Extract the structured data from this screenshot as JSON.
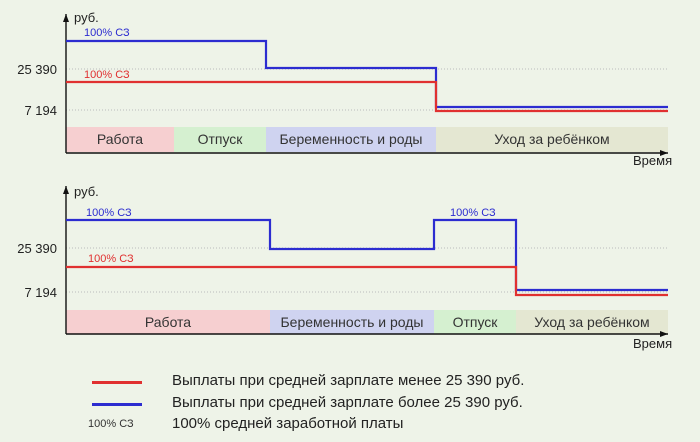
{
  "colors": {
    "red": "#e03030",
    "blue": "#2c2cd0",
    "grid": "#bbbbbb",
    "axis": "#111111",
    "phase_work": "#f6cfd0",
    "phase_vacation": "#d5f0d0",
    "phase_pregnancy": "#cfd3f0",
    "phase_childcare": "#e4e7d2"
  },
  "chart_data": [
    {
      "type": "line",
      "ylabel": "руб.",
      "xlabel": "Время",
      "yticks": [
        {
          "value": 25390,
          "label": "25 390"
        },
        {
          "value": 7194,
          "label": "7 194"
        }
      ],
      "phases": [
        {
          "label": "Работа",
          "color_key": "phase_work"
        },
        {
          "label": "Отпуск",
          "color_key": "phase_vacation"
        },
        {
          "label": "Беременность и роды",
          "color_key": "phase_pregnancy"
        },
        {
          "label": "Уход за ребёнком",
          "color_key": "phase_childcare"
        }
      ],
      "series": [
        {
          "color_key": "blue",
          "steps": [
            {
              "phase": 0,
              "level": "high"
            },
            {
              "phase": 1,
              "level": "high"
            },
            {
              "phase": 2,
              "level": "mid"
            },
            {
              "phase": 3,
              "level": "low"
            }
          ],
          "annotation": "100% СЗ"
        },
        {
          "color_key": "red",
          "steps": [
            {
              "phase": 0,
              "level": "ref"
            },
            {
              "phase": 1,
              "level": "ref"
            },
            {
              "phase": 2,
              "level": "ref"
            },
            {
              "phase": 3,
              "level": "lower"
            }
          ],
          "annotation": "100% СЗ"
        }
      ]
    },
    {
      "type": "line",
      "ylabel": "руб.",
      "xlabel": "Время",
      "yticks": [
        {
          "value": 25390,
          "label": "25 390"
        },
        {
          "value": 7194,
          "label": "7 194"
        }
      ],
      "phases": [
        {
          "label": "Работа",
          "color_key": "phase_work"
        },
        {
          "label": "Беременность и роды",
          "color_key": "phase_pregnancy"
        },
        {
          "label": "Отпуск",
          "color_key": "phase_vacation"
        },
        {
          "label": "Уход за ребёнком",
          "color_key": "phase_childcare"
        }
      ],
      "series": [
        {
          "color_key": "blue",
          "steps": [
            {
              "phase": 0,
              "level": "high"
            },
            {
              "phase": 1,
              "level": "mid"
            },
            {
              "phase": 2,
              "level": "high"
            },
            {
              "phase": 3,
              "level": "low"
            }
          ],
          "annotations": [
            "100% СЗ",
            "100% СЗ"
          ]
        },
        {
          "color_key": "red",
          "steps": [
            {
              "phase": 0,
              "level": "ref"
            },
            {
              "phase": 1,
              "level": "ref"
            },
            {
              "phase": 2,
              "level": "ref"
            },
            {
              "phase": 3,
              "level": "lower"
            }
          ],
          "annotation": "100% СЗ"
        }
      ]
    }
  ],
  "legend": {
    "red_text": "Выплаты при средней зарплате менее 25 390 руб.",
    "blue_text": "Выплаты при средней зарплате более 25 390 руб.",
    "sc_abbr": "100% СЗ",
    "sc_text": "100% средней заработной платы"
  }
}
